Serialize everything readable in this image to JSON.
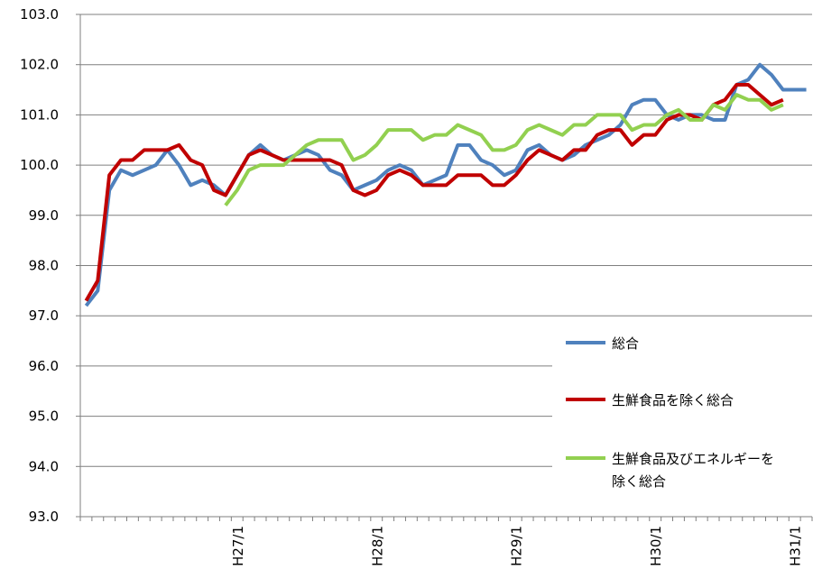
{
  "chart_data": {
    "type": "line",
    "title": "",
    "xlabel": "",
    "ylabel": "",
    "ylim": [
      93.0,
      103.0
    ],
    "ytick_step": 1.0,
    "y_tick_labels": [
      "93.0",
      "94.0",
      "95.0",
      "96.0",
      "97.0",
      "98.0",
      "99.0",
      "100.0",
      "101.0",
      "102.0",
      "103.0"
    ],
    "x_tick_labels": [
      {
        "label": "H27/1",
        "index": 13
      },
      {
        "label": "H28/1",
        "index": 25
      },
      {
        "label": "H29/1",
        "index": 37
      },
      {
        "label": "H30/1",
        "index": 49
      },
      {
        "label": "H31/1",
        "index": 61
      }
    ],
    "grid": "horizontal",
    "legend_position": "lower-right",
    "series": [
      {
        "name": "総合",
        "color": "#4F81BD",
        "values": [
          97.2,
          97.5,
          99.5,
          99.9,
          99.8,
          99.9,
          100.0,
          100.3,
          100.0,
          99.6,
          99.7,
          99.6,
          99.4,
          99.8,
          100.2,
          100.4,
          100.2,
          100.1,
          100.2,
          100.3,
          100.2,
          99.9,
          99.8,
          99.5,
          99.6,
          99.7,
          99.9,
          100.0,
          99.9,
          99.6,
          99.7,
          99.8,
          100.4,
          100.4,
          100.1,
          100.0,
          99.8,
          99.9,
          100.3,
          100.4,
          100.2,
          100.1,
          100.2,
          100.4,
          100.5,
          100.6,
          100.8,
          101.2,
          101.3,
          101.3,
          101.0,
          100.9,
          101.0,
          101.0,
          100.9,
          100.9,
          101.6,
          101.7,
          102.0,
          101.8,
          101.5,
          101.5,
          101.5
        ]
      },
      {
        "name": "生鮮食品を除く総合",
        "color": "#C00000",
        "values": [
          97.3,
          97.7,
          99.8,
          100.1,
          100.1,
          100.3,
          100.3,
          100.3,
          100.4,
          100.1,
          100.0,
          99.5,
          99.4,
          99.8,
          100.2,
          100.3,
          100.2,
          100.1,
          100.1,
          100.1,
          100.1,
          100.1,
          100.0,
          99.5,
          99.4,
          99.5,
          99.8,
          99.9,
          99.8,
          99.6,
          99.6,
          99.6,
          99.8,
          99.8,
          99.8,
          99.6,
          99.6,
          99.8,
          100.1,
          100.3,
          100.2,
          100.1,
          100.3,
          100.3,
          100.6,
          100.7,
          100.7,
          100.4,
          100.6,
          100.6,
          100.9,
          101.0,
          101.0,
          100.9,
          101.2,
          101.3,
          101.6,
          101.6,
          101.4,
          101.2,
          101.3
        ]
      },
      {
        "name": "生鮮食品及びエネルギーを除く総合",
        "color": "#92D050",
        "start_index": 12,
        "values": [
          99.2,
          99.5,
          99.9,
          100.0,
          100.0,
          100.0,
          100.2,
          100.4,
          100.5,
          100.5,
          100.5,
          100.1,
          100.2,
          100.4,
          100.7,
          100.7,
          100.7,
          100.5,
          100.6,
          100.6,
          100.8,
          100.7,
          100.6,
          100.3,
          100.3,
          100.4,
          100.7,
          100.8,
          100.7,
          100.6,
          100.8,
          100.8,
          101.0,
          101.0,
          101.0,
          100.7,
          100.8,
          100.8,
          101.0,
          101.1,
          100.9,
          100.9,
          101.2,
          101.1,
          101.4,
          101.3,
          101.3,
          101.1,
          101.2
        ]
      }
    ],
    "legend": [
      {
        "text": "総合"
      },
      {
        "text": "生鮮食品を除く総合"
      },
      {
        "text": "生鮮食品及びエネルギーを",
        "text2": "除く総合"
      }
    ]
  }
}
